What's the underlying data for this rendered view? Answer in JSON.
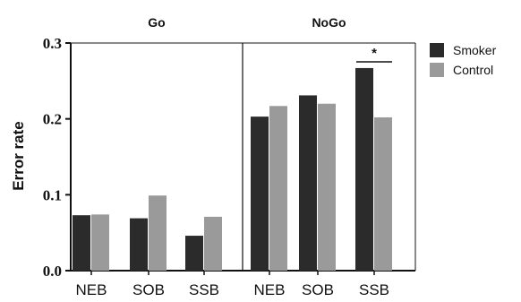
{
  "chart_data": {
    "type": "bar",
    "ylabel": "Error rate",
    "ylim": [
      0,
      0.3
    ],
    "yticks": [
      "0.0",
      "0.1",
      "0.2",
      "0.3"
    ],
    "panels": [
      {
        "title": "Go",
        "categories": [
          "NEB",
          "SOB",
          "SSB"
        ],
        "series": [
          {
            "name": "Smoker",
            "values": [
              0.073,
              0.069,
              0.046
            ]
          },
          {
            "name": "Control",
            "values": [
              0.074,
              0.099,
              0.071
            ]
          }
        ]
      },
      {
        "title": "NoGo",
        "categories": [
          "NEB",
          "SOB",
          "SSB"
        ],
        "series": [
          {
            "name": "Smoker",
            "values": [
              0.203,
              0.231,
              0.267
            ]
          },
          {
            "name": "Control",
            "values": [
              0.217,
              0.22,
              0.202
            ]
          }
        ]
      }
    ],
    "legend": {
      "position": "right",
      "entries": [
        "Smoker",
        "Control"
      ]
    },
    "annotations": [
      {
        "text": "*",
        "panel": 1,
        "category": "SSB"
      }
    ],
    "colors": {
      "Smoker": "#2b2b2b",
      "Control": "#9a9a9a"
    }
  }
}
